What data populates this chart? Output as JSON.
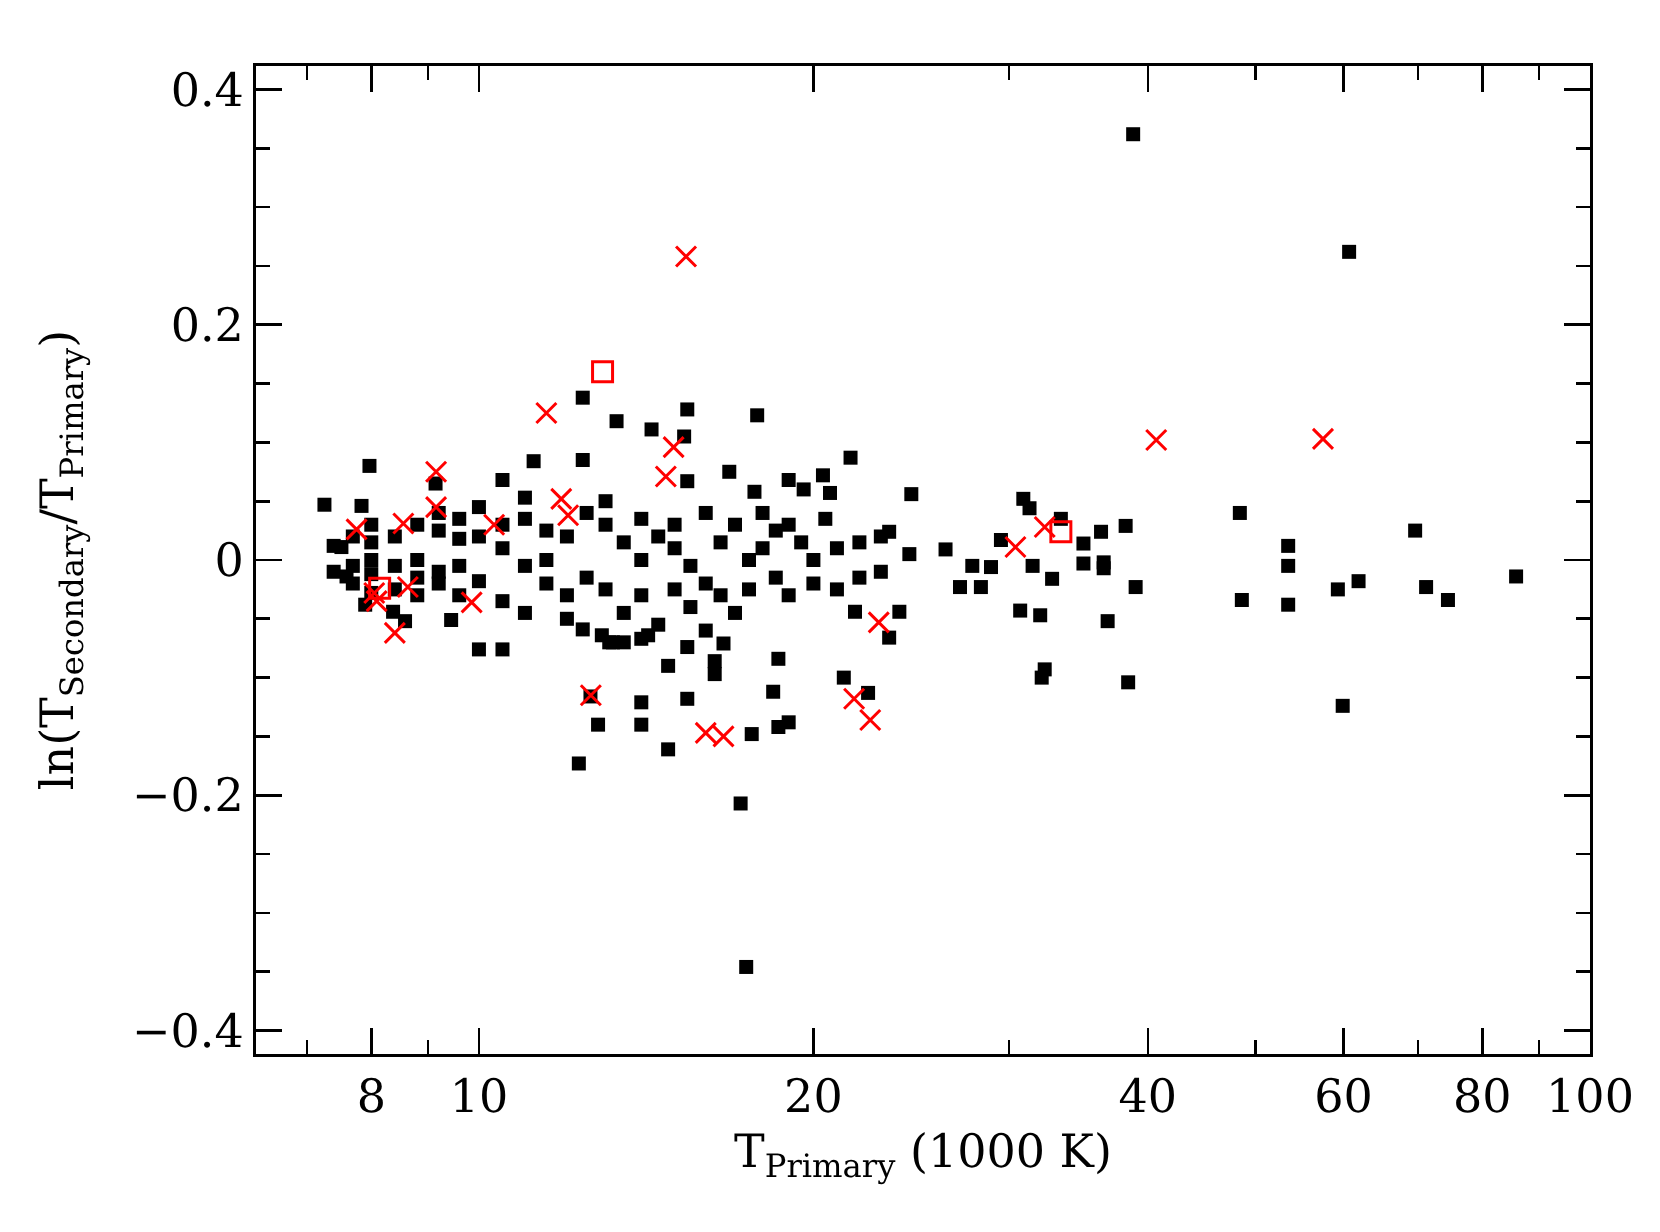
{
  "chart_data": {
    "type": "scatter",
    "xlabel": "T$_{Primary}$ (1000 K)",
    "ylabel": "ln(T$_{Secondary}$/T$_{Primary}$)",
    "log": "x",
    "xlim": [
      6.3,
      100
    ],
    "xticks": [
      {
        "value": 7,
        "label": null
      },
      8,
      {
        "value": 9,
        "label": null
      },
      10,
      20,
      {
        "value": 30,
        "label": null
      },
      40,
      {
        "value": 50,
        "label": null
      },
      60,
      {
        "value": 70,
        "label": null
      },
      80,
      {
        "value": 90,
        "label": null
      },
      100
    ],
    "ylim": [
      -0.42,
      0.42
    ],
    "yticks": [
      {
        "value": -0.4,
        "label": "−0.4"
      },
      {
        "value": -0.35,
        "label": null
      },
      {
        "value": -0.3,
        "label": null
      },
      {
        "value": -0.25,
        "label": null
      },
      {
        "value": -0.2,
        "label": "−0.2"
      },
      {
        "value": -0.15,
        "label": null
      },
      {
        "value": -0.1,
        "label": null
      },
      {
        "value": -0.05,
        "label": null
      },
      0,
      {
        "value": 0.05,
        "label": null
      },
      {
        "value": 0.1,
        "label": null
      },
      {
        "value": 0.15,
        "label": null
      },
      0.2,
      {
        "value": 0.25,
        "label": null
      },
      {
        "value": 0.3,
        "label": null
      },
      {
        "value": 0.35,
        "label": null
      },
      0.4
    ],
    "series": [
      {
        "color": "#000000",
        "marker": "square",
        "x": [
          7.26,
          7.97,
          7.84,
          7.52,
          7.6,
          7.9,
          8.37,
          8.58,
          9.44,
          10.0,
          10.5,
          9.14,
          10.5,
          11.0,
          11.2,
          12.4,
          12.4,
          13.3,
          14.3,
          15.3,
          15.4,
          15.4,
          16.8,
          17.7,
          17.8,
          19.0,
          19.6,
          20.4,
          20.7,
          21.6,
          24.5,
          23.4,
          24.4,
          26.3,
          27.1,
          27.8,
          28.3,
          28.9,
          29.5,
          30.9,
          31.3,
          31.5,
          32.8,
          33.4,
          35.0,
          35.0,
          36.5,
          36.5,
          36.3,
          38.2,
          39.0,
          36.8,
          38.4,
          38.8,
          30.7,
          32.0,
          32.1,
          32.3,
          48.4,
          48.6,
          53.5,
          53.5,
          53.5,
          59.3,
          59.9,
          60.7,
          61.9,
          69.6,
          71.2,
          74.5,
          85.8,
          12.4,
          12.9,
          13.2,
          13.5,
          13.1,
          14.0,
          14.2,
          14.0,
          14.0,
          12.8,
          12.3,
          12.6,
          14.8,
          15.4,
          14.8,
          15.4,
          16.3,
          16.3,
          16.6,
          17.2,
          17.4,
          17.6,
          18.6,
          19.0,
          18.4,
          18.6,
          21.3,
          22.4,
          23.4,
          23.9,
          21.8,
          7.4,
          7.4,
          7.7,
          7.7,
          7.7,
          8.0,
          8.0,
          8.0,
          8.0,
          8.0,
          8.4,
          8.4,
          8.4,
          8.8,
          8.8,
          8.8,
          8.8,
          9.2,
          9.2,
          9.2,
          9.2,
          9.6,
          9.6,
          9.6,
          9.6,
          10.0,
          10.0,
          10.0,
          10.5,
          10.5,
          10.5,
          11.0,
          11.0,
          11.0,
          11.5,
          11.5,
          11.5,
          12.0,
          12.0,
          12.0,
          12.5,
          12.5,
          13.0,
          13.0,
          13.0,
          13.5,
          13.5,
          14.0,
          14.0,
          14.0,
          14.5,
          14.5,
          15.0,
          15.0,
          15.0,
          15.5,
          15.5,
          16.0,
          16.0,
          16.0,
          16.5,
          16.5,
          17.0,
          17.0,
          17.5,
          17.5,
          18.0,
          18.0,
          18.5,
          18.5,
          19.0,
          19.0,
          19.5,
          20.0,
          20.0,
          20.5,
          21.0,
          21.0,
          22.0,
          22.0,
          23.0,
          23.0
        ],
        "values": [
          0.047,
          0.08,
          0.046,
          0.011,
          -0.014,
          -0.038,
          -0.044,
          -0.052,
          -0.051,
          -0.076,
          -0.076,
          0.065,
          0.068,
          0.053,
          0.084,
          0.085,
          0.138,
          0.118,
          0.111,
          0.105,
          0.128,
          0.067,
          0.075,
          0.058,
          0.123,
          0.068,
          0.06,
          0.072,
          0.057,
          0.087,
          0.056,
          0.024,
          0.005,
          0.009,
          -0.023,
          -0.005,
          -0.023,
          -0.006,
          0.017,
          0.052,
          0.044,
          -0.005,
          -0.016,
          0.035,
          0.014,
          -0.003,
          -0.002,
          -0.007,
          0.024,
          0.029,
          -0.023,
          -0.052,
          -0.104,
          0.362,
          -0.043,
          -0.047,
          -0.1,
          -0.093,
          0.04,
          -0.034,
          0.012,
          -0.005,
          -0.038,
          -0.025,
          -0.124,
          0.262,
          -0.018,
          0.025,
          -0.023,
          -0.034,
          -0.014,
          -0.059,
          -0.064,
          -0.07,
          -0.07,
          -0.07,
          -0.067,
          -0.064,
          -0.121,
          -0.14,
          -0.14,
          -0.173,
          -0.116,
          -0.161,
          -0.118,
          -0.09,
          -0.074,
          -0.097,
          -0.086,
          -0.071,
          -0.207,
          -0.346,
          -0.148,
          -0.142,
          -0.138,
          -0.112,
          -0.084,
          -0.1,
          -0.113,
          -0.066,
          -0.044,
          -0.044,
          0.012,
          -0.01,
          0.02,
          -0.005,
          -0.02,
          0.015,
          -0.012,
          0.03,
          -0.028,
          0.0,
          0.02,
          -0.005,
          -0.025,
          0.03,
          0.0,
          -0.015,
          -0.03,
          0.025,
          -0.01,
          0.04,
          -0.02,
          0.018,
          -0.005,
          0.035,
          -0.03,
          0.02,
          -0.018,
          0.045,
          0.03,
          0.01,
          -0.035,
          0.035,
          -0.005,
          -0.045,
          0.025,
          0.0,
          -0.02,
          0.02,
          -0.03,
          -0.05,
          0.04,
          -0.015,
          0.03,
          -0.025,
          0.05,
          0.015,
          -0.045,
          0.035,
          0.0,
          -0.03,
          0.02,
          -0.055,
          0.01,
          -0.025,
          0.03,
          -0.005,
          -0.04,
          0.04,
          -0.02,
          -0.06,
          0.015,
          -0.03,
          0.03,
          -0.045,
          0.0,
          -0.025,
          0.01,
          0.04,
          0.025,
          -0.015,
          -0.03,
          0.03,
          0.015,
          -0.02,
          0.0,
          0.035,
          0.01,
          -0.025,
          0.015,
          -0.015,
          0.02,
          -0.01
        ]
      },
      {
        "color": "#ff0000",
        "marker": "cross",
        "x": [
          7.76,
          8.55,
          9.15,
          9.15,
          10.32,
          8.09,
          8.05,
          8.63,
          8.4,
          9.85,
          11.5,
          11.86,
          12.03,
          12.61,
          15.36,
          14.97,
          14.73,
          30.4,
          32.3,
          16.0,
          16.6,
          21.76,
          22.5,
          22.9,
          40.7,
          57.5
        ],
        "values": [
          0.026,
          0.031,
          0.075,
          0.045,
          0.03,
          -0.035,
          -0.028,
          -0.023,
          -0.062,
          -0.036,
          0.125,
          0.052,
          0.038,
          -0.115,
          0.258,
          0.096,
          0.071,
          0.011,
          0.028,
          -0.147,
          -0.15,
          -0.118,
          -0.136,
          -0.053,
          0.102,
          0.103
        ]
      },
      {
        "color": "#ff0000",
        "marker": "square",
        "x": [
          8.14,
          12.92,
          33.4
        ],
        "values": [
          -0.024,
          0.16,
          0.024
        ]
      }
    ]
  }
}
